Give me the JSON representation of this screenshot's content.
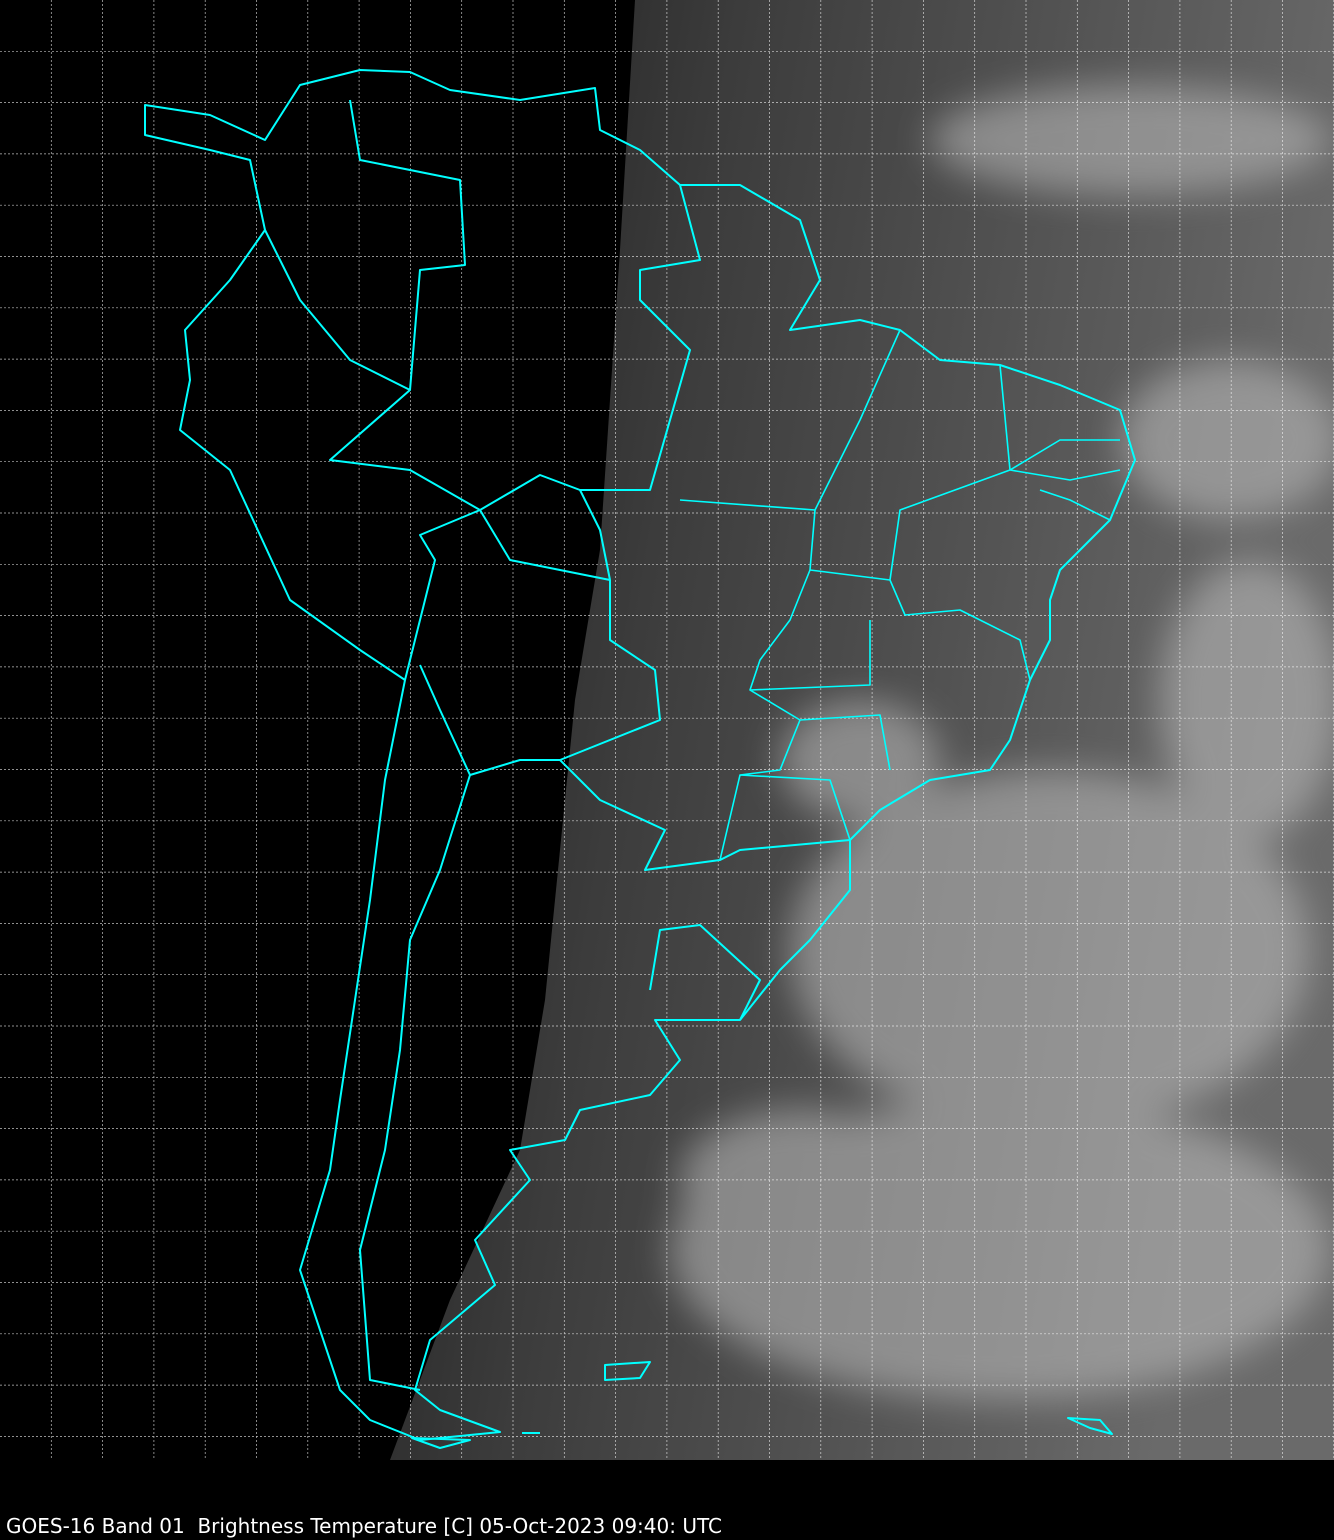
{
  "caption": "GOES-16 Band 01  Brightness Temperature [C] 05-Oct-2023 09:40: UTC",
  "colors": {
    "background": "#000000",
    "coastline": "#00ffff",
    "grid": "#ffffff",
    "daylight_gray": "#5a5a5a",
    "clouds": "#c8c8c8"
  },
  "map": {
    "region": "South America",
    "grid": true,
    "grid_style": "dashed"
  }
}
